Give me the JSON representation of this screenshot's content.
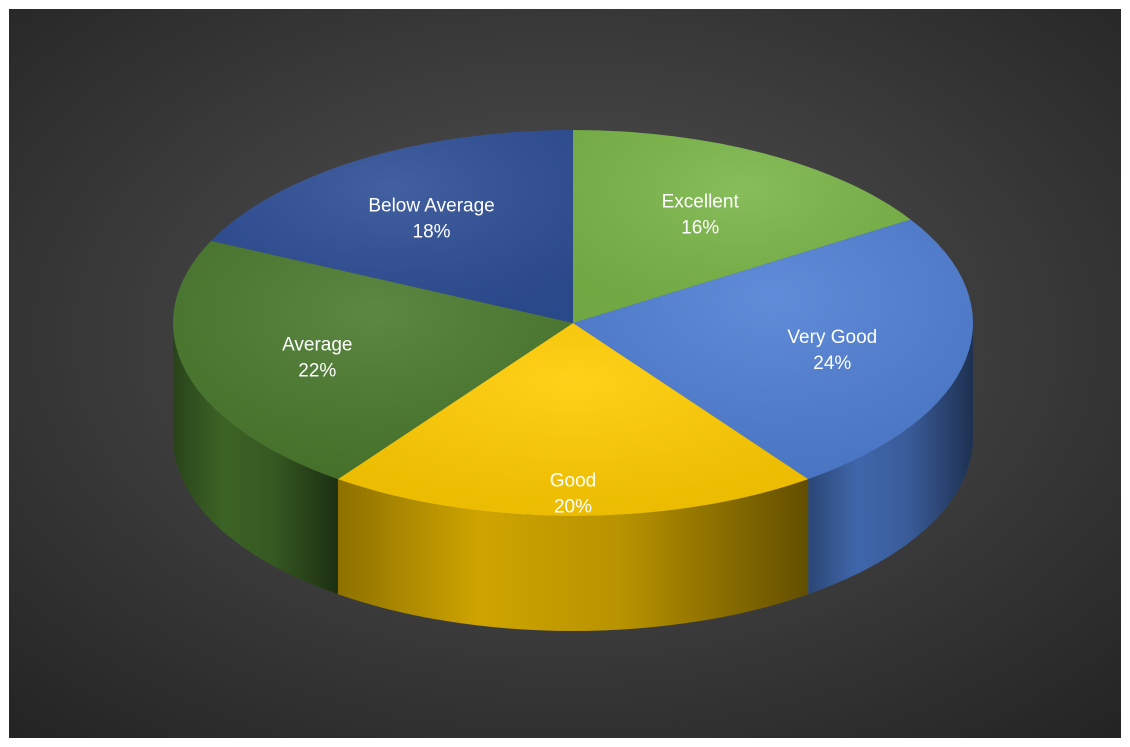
{
  "chart_data": {
    "type": "pie",
    "variant": "3d",
    "title": "",
    "background": "#3c3c3c",
    "slices": [
      {
        "label": "Excellent",
        "pct_label": "16%",
        "value": 16,
        "color": "#7ab648"
      },
      {
        "label": "Very Good",
        "pct_label": "24%",
        "value": 24,
        "color": "#4f7fd4"
      },
      {
        "label": "Good",
        "pct_label": "20%",
        "value": 20,
        "color": "#ffcc00"
      },
      {
        "label": "Average",
        "pct_label": "22%",
        "value": 22,
        "color": "#4a7a2e"
      },
      {
        "label": "Below Average",
        "pct_label": "18%",
        "value": 18,
        "color": "#2e4f96"
      }
    ]
  }
}
